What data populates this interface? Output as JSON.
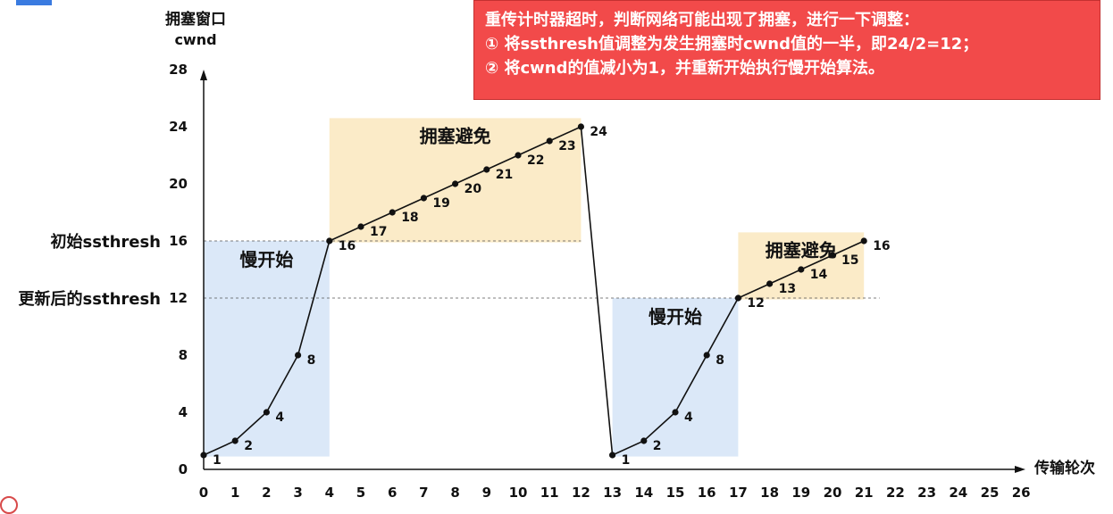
{
  "chart_data": {
    "type": "line",
    "ylabel_line1": "拥塞窗口",
    "ylabel_line2": "cwnd",
    "xlabel": "传输轮次",
    "x_ticks": [
      "0",
      "1",
      "2",
      "3",
      "4",
      "5",
      "6",
      "7",
      "8",
      "9",
      "10",
      "11",
      "12",
      "13",
      "14",
      "15",
      "16",
      "17",
      "18",
      "19",
      "20",
      "21",
      "22",
      "23",
      "24",
      "25",
      "26"
    ],
    "y_ticks": [
      "0",
      "4",
      "8",
      "12",
      "16",
      "20",
      "24",
      "28"
    ],
    "xlim": [
      0,
      26
    ],
    "ylim": [
      0,
      28
    ],
    "series": [
      {
        "x": [
          0,
          1,
          2,
          3,
          4,
          5,
          6,
          7,
          8,
          9,
          10,
          11,
          12
        ],
        "y": [
          1,
          2,
          4,
          8,
          16,
          17,
          18,
          19,
          20,
          21,
          22,
          23,
          24
        ]
      },
      {
        "x": [
          12,
          13
        ],
        "y": [
          24,
          1
        ]
      },
      {
        "x": [
          13,
          14,
          15,
          16,
          17,
          18,
          19,
          20,
          21
        ],
        "y": [
          1,
          2,
          4,
          8,
          12,
          13,
          14,
          15,
          16
        ]
      }
    ],
    "point_labels": [
      {
        "x": 0,
        "y": 1,
        "text": "1"
      },
      {
        "x": 1,
        "y": 2,
        "text": "2"
      },
      {
        "x": 2,
        "y": 4,
        "text": "4"
      },
      {
        "x": 3,
        "y": 8,
        "text": "8"
      },
      {
        "x": 4,
        "y": 16,
        "text": "16"
      },
      {
        "x": 5,
        "y": 17,
        "text": "17"
      },
      {
        "x": 6,
        "y": 18,
        "text": "18"
      },
      {
        "x": 7,
        "y": 19,
        "text": "19"
      },
      {
        "x": 8,
        "y": 20,
        "text": "20"
      },
      {
        "x": 9,
        "y": 21,
        "text": "21"
      },
      {
        "x": 10,
        "y": 22,
        "text": "22"
      },
      {
        "x": 11,
        "y": 23,
        "text": "23"
      },
      {
        "x": 12,
        "y": 24,
        "text": "24"
      },
      {
        "x": 13,
        "y": 1,
        "text": "1"
      },
      {
        "x": 14,
        "y": 2,
        "text": "2"
      },
      {
        "x": 15,
        "y": 4,
        "text": "4"
      },
      {
        "x": 16,
        "y": 8,
        "text": "8"
      },
      {
        "x": 17,
        "y": 12,
        "text": "12"
      },
      {
        "x": 18,
        "y": 13,
        "text": "13"
      },
      {
        "x": 19,
        "y": 14,
        "text": "14"
      },
      {
        "x": 20,
        "y": 15,
        "text": "15"
      },
      {
        "x": 21,
        "y": 16,
        "text": "16"
      }
    ],
    "regions": [
      {
        "label": "慢开始",
        "kind": "slow-start",
        "x_range": [
          0,
          4
        ],
        "y_range": [
          1,
          16
        ],
        "color": "#dbe8f8"
      },
      {
        "label": "拥塞避免",
        "kind": "congestion-avoidance",
        "x_range": [
          4,
          12
        ],
        "y_range": [
          16,
          24
        ],
        "color": "#fbebc8"
      },
      {
        "label": "慢开始",
        "kind": "slow-start",
        "x_range": [
          13,
          17
        ],
        "y_range": [
          1,
          12
        ],
        "color": "#dbe8f8"
      },
      {
        "label": "拥塞避免",
        "kind": "congestion-avoidance",
        "x_range": [
          17,
          21
        ],
        "y_range": [
          12,
          16
        ],
        "color": "#fbebc8"
      }
    ],
    "thresholds": [
      {
        "label": "初始ssthresh",
        "y": 16,
        "color": "#111111"
      },
      {
        "label": "更新后的ssthresh",
        "y": 12,
        "color": "#e02020"
      }
    ],
    "callout": {
      "lines": [
        "重传计时器超时，判断网络可能出现了拥塞，进行一下调整：",
        "①  将ssthresh值调整为发生拥塞时cwnd值的一半，即24/2=12；",
        "②  将cwnd的值减小为1，并重新开始执行慢开始算法。"
      ],
      "color": "#f24a4a"
    },
    "grid": false
  }
}
